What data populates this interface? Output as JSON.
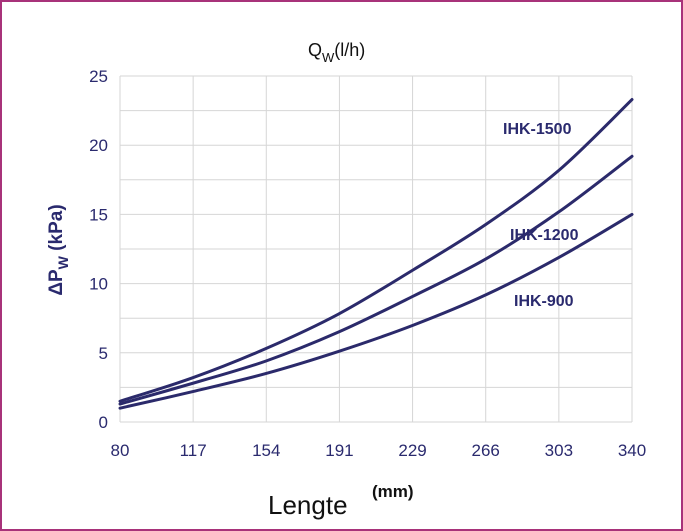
{
  "chart_data": {
    "type": "line",
    "title_main": "Q",
    "title_sub": "W",
    "title_unit": "(l/h)",
    "ylabel_prefix": "ΔP",
    "ylabel_sub": "W",
    "ylabel_unit": " (kPa)",
    "xlabel": "Lengte",
    "xlabel_unit": "(mm)",
    "x_ticks": [
      "80",
      "117",
      "154",
      "191",
      "229",
      "266",
      "303",
      "340"
    ],
    "y_ticks": [
      "0",
      "5",
      "10",
      "15",
      "20",
      "25"
    ],
    "ylim": [
      0,
      25
    ],
    "xlim": [
      80,
      340
    ],
    "grid": true,
    "series": [
      {
        "name": "IHK-1500",
        "x": [
          80,
          117,
          154,
          191,
          229,
          266,
          303,
          340
        ],
        "values": [
          1.5,
          3.2,
          5.3,
          7.8,
          11.0,
          14.3,
          18.2,
          23.3
        ]
      },
      {
        "name": "IHK-1200",
        "x": [
          80,
          117,
          154,
          191,
          229,
          266,
          303,
          340
        ],
        "values": [
          1.3,
          2.8,
          4.4,
          6.5,
          9.1,
          11.8,
          15.2,
          19.2
        ]
      },
      {
        "name": "IHK-900",
        "x": [
          80,
          117,
          154,
          191,
          229,
          266,
          303,
          340
        ],
        "values": [
          1.0,
          2.2,
          3.5,
          5.1,
          7.0,
          9.2,
          11.9,
          15.0
        ]
      }
    ]
  }
}
